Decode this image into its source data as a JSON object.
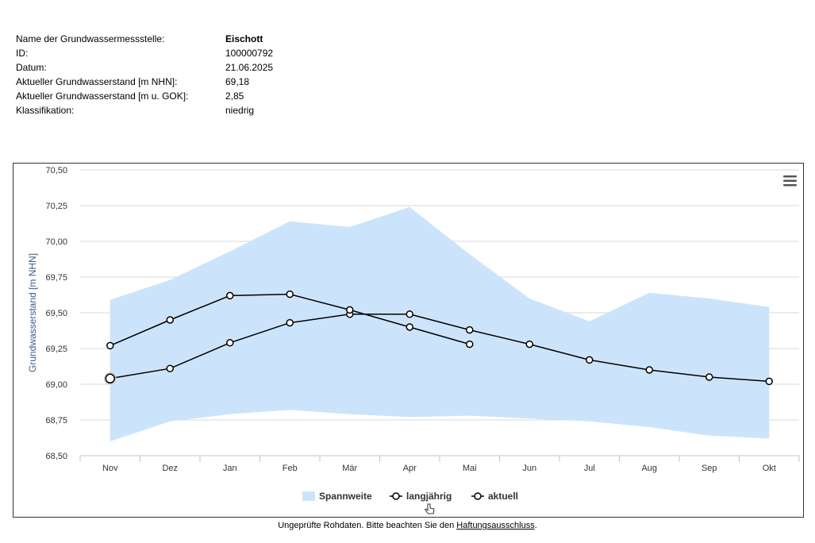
{
  "station_info": [
    {
      "label": "Name der Grundwassermessstelle:",
      "value": "Eischott",
      "bold": true
    },
    {
      "label": "ID:",
      "value": "100000792"
    },
    {
      "label": "Datum:",
      "value": "21.06.2025"
    },
    {
      "label": "Aktueller Grundwasserstand [m NHN]:",
      "value": "69,18"
    },
    {
      "label": "Aktueller Grundwasserstand [m u. GOK]:",
      "value": "2,85"
    },
    {
      "label": "Klassifikation:",
      "value": "niedrig"
    }
  ],
  "chart_data": {
    "type": "line",
    "categories": [
      "Nov",
      "Dez",
      "Jan",
      "Feb",
      "Mär",
      "Apr",
      "Mai",
      "Jun",
      "Jul",
      "Aug",
      "Sep",
      "Okt"
    ],
    "ylabel": "Grundwasserstand [m NHN]",
    "ylim": [
      68.5,
      70.5
    ],
    "yticks": [
      68.5,
      68.75,
      69.0,
      69.25,
      69.5,
      69.75,
      70.0,
      70.25,
      70.5
    ],
    "ytick_labels": [
      "68,50",
      "68,75",
      "69,00",
      "69,25",
      "69,50",
      "69,75",
      "70,00",
      "70,25",
      "70,50"
    ],
    "grid": true,
    "legend_position": "bottom-center",
    "range": {
      "name": "Spannweite",
      "color": "#cce4fb",
      "min": [
        68.6,
        68.74,
        68.79,
        68.82,
        68.79,
        68.77,
        68.78,
        68.76,
        68.74,
        68.7,
        68.64,
        68.62
      ],
      "max": [
        69.59,
        69.73,
        69.93,
        70.14,
        70.1,
        70.24,
        69.91,
        69.6,
        69.44,
        69.64,
        69.6,
        69.54
      ]
    },
    "series": [
      {
        "name": "langjährig",
        "color": "#000000",
        "values": [
          69.04,
          69.11,
          69.29,
          69.43,
          69.49,
          69.49,
          69.38,
          69.28,
          69.17,
          69.1,
          69.05,
          69.02
        ]
      },
      {
        "name": "aktuell",
        "color": "#000000",
        "values": [
          69.27,
          69.45,
          69.62,
          69.63,
          69.52,
          69.4,
          69.28,
          null,
          null,
          null,
          null,
          null
        ]
      }
    ]
  },
  "menu_icon": "hamburger-menu-icon",
  "footer": {
    "text": "Ungeprüfte Rohdaten. Bitte beachten Sie den",
    "link": "Haftungsausschluss",
    "end": "."
  }
}
